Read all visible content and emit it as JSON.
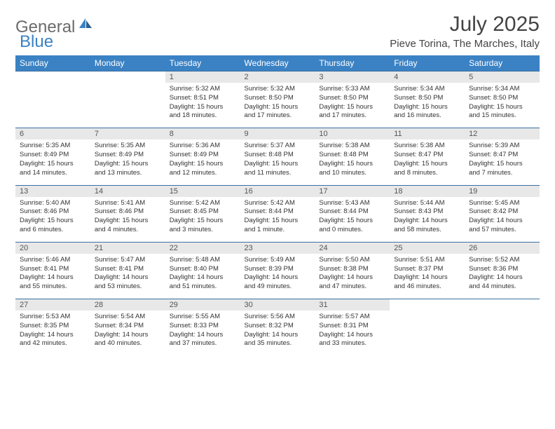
{
  "logo": {
    "general": "General",
    "blue": "Blue"
  },
  "title": "July 2025",
  "location": "Pieve Torina, The Marches, Italy",
  "colors": {
    "header_bg": "#3b82c4",
    "header_text": "#ffffff",
    "daynum_bg": "#e8e8e8",
    "border": "#3b6fa0",
    "body_text": "#333333",
    "logo_gray": "#6b6b6b",
    "logo_blue": "#3b82c4"
  },
  "day_headers": [
    "Sunday",
    "Monday",
    "Tuesday",
    "Wednesday",
    "Thursday",
    "Friday",
    "Saturday"
  ],
  "weeks": [
    [
      {
        "n": "",
        "sr": "",
        "ss": "",
        "dl": ""
      },
      {
        "n": "",
        "sr": "",
        "ss": "",
        "dl": ""
      },
      {
        "n": "1",
        "sr": "Sunrise: 5:32 AM",
        "ss": "Sunset: 8:51 PM",
        "dl": "Daylight: 15 hours and 18 minutes."
      },
      {
        "n": "2",
        "sr": "Sunrise: 5:32 AM",
        "ss": "Sunset: 8:50 PM",
        "dl": "Daylight: 15 hours and 17 minutes."
      },
      {
        "n": "3",
        "sr": "Sunrise: 5:33 AM",
        "ss": "Sunset: 8:50 PM",
        "dl": "Daylight: 15 hours and 17 minutes."
      },
      {
        "n": "4",
        "sr": "Sunrise: 5:34 AM",
        "ss": "Sunset: 8:50 PM",
        "dl": "Daylight: 15 hours and 16 minutes."
      },
      {
        "n": "5",
        "sr": "Sunrise: 5:34 AM",
        "ss": "Sunset: 8:50 PM",
        "dl": "Daylight: 15 hours and 15 minutes."
      }
    ],
    [
      {
        "n": "6",
        "sr": "Sunrise: 5:35 AM",
        "ss": "Sunset: 8:49 PM",
        "dl": "Daylight: 15 hours and 14 minutes."
      },
      {
        "n": "7",
        "sr": "Sunrise: 5:35 AM",
        "ss": "Sunset: 8:49 PM",
        "dl": "Daylight: 15 hours and 13 minutes."
      },
      {
        "n": "8",
        "sr": "Sunrise: 5:36 AM",
        "ss": "Sunset: 8:49 PM",
        "dl": "Daylight: 15 hours and 12 minutes."
      },
      {
        "n": "9",
        "sr": "Sunrise: 5:37 AM",
        "ss": "Sunset: 8:48 PM",
        "dl": "Daylight: 15 hours and 11 minutes."
      },
      {
        "n": "10",
        "sr": "Sunrise: 5:38 AM",
        "ss": "Sunset: 8:48 PM",
        "dl": "Daylight: 15 hours and 10 minutes."
      },
      {
        "n": "11",
        "sr": "Sunrise: 5:38 AM",
        "ss": "Sunset: 8:47 PM",
        "dl": "Daylight: 15 hours and 8 minutes."
      },
      {
        "n": "12",
        "sr": "Sunrise: 5:39 AM",
        "ss": "Sunset: 8:47 PM",
        "dl": "Daylight: 15 hours and 7 minutes."
      }
    ],
    [
      {
        "n": "13",
        "sr": "Sunrise: 5:40 AM",
        "ss": "Sunset: 8:46 PM",
        "dl": "Daylight: 15 hours and 6 minutes."
      },
      {
        "n": "14",
        "sr": "Sunrise: 5:41 AM",
        "ss": "Sunset: 8:46 PM",
        "dl": "Daylight: 15 hours and 4 minutes."
      },
      {
        "n": "15",
        "sr": "Sunrise: 5:42 AM",
        "ss": "Sunset: 8:45 PM",
        "dl": "Daylight: 15 hours and 3 minutes."
      },
      {
        "n": "16",
        "sr": "Sunrise: 5:42 AM",
        "ss": "Sunset: 8:44 PM",
        "dl": "Daylight: 15 hours and 1 minute."
      },
      {
        "n": "17",
        "sr": "Sunrise: 5:43 AM",
        "ss": "Sunset: 8:44 PM",
        "dl": "Daylight: 15 hours and 0 minutes."
      },
      {
        "n": "18",
        "sr": "Sunrise: 5:44 AM",
        "ss": "Sunset: 8:43 PM",
        "dl": "Daylight: 14 hours and 58 minutes."
      },
      {
        "n": "19",
        "sr": "Sunrise: 5:45 AM",
        "ss": "Sunset: 8:42 PM",
        "dl": "Daylight: 14 hours and 57 minutes."
      }
    ],
    [
      {
        "n": "20",
        "sr": "Sunrise: 5:46 AM",
        "ss": "Sunset: 8:41 PM",
        "dl": "Daylight: 14 hours and 55 minutes."
      },
      {
        "n": "21",
        "sr": "Sunrise: 5:47 AM",
        "ss": "Sunset: 8:41 PM",
        "dl": "Daylight: 14 hours and 53 minutes."
      },
      {
        "n": "22",
        "sr": "Sunrise: 5:48 AM",
        "ss": "Sunset: 8:40 PM",
        "dl": "Daylight: 14 hours and 51 minutes."
      },
      {
        "n": "23",
        "sr": "Sunrise: 5:49 AM",
        "ss": "Sunset: 8:39 PM",
        "dl": "Daylight: 14 hours and 49 minutes."
      },
      {
        "n": "24",
        "sr": "Sunrise: 5:50 AM",
        "ss": "Sunset: 8:38 PM",
        "dl": "Daylight: 14 hours and 47 minutes."
      },
      {
        "n": "25",
        "sr": "Sunrise: 5:51 AM",
        "ss": "Sunset: 8:37 PM",
        "dl": "Daylight: 14 hours and 46 minutes."
      },
      {
        "n": "26",
        "sr": "Sunrise: 5:52 AM",
        "ss": "Sunset: 8:36 PM",
        "dl": "Daylight: 14 hours and 44 minutes."
      }
    ],
    [
      {
        "n": "27",
        "sr": "Sunrise: 5:53 AM",
        "ss": "Sunset: 8:35 PM",
        "dl": "Daylight: 14 hours and 42 minutes."
      },
      {
        "n": "28",
        "sr": "Sunrise: 5:54 AM",
        "ss": "Sunset: 8:34 PM",
        "dl": "Daylight: 14 hours and 40 minutes."
      },
      {
        "n": "29",
        "sr": "Sunrise: 5:55 AM",
        "ss": "Sunset: 8:33 PM",
        "dl": "Daylight: 14 hours and 37 minutes."
      },
      {
        "n": "30",
        "sr": "Sunrise: 5:56 AM",
        "ss": "Sunset: 8:32 PM",
        "dl": "Daylight: 14 hours and 35 minutes."
      },
      {
        "n": "31",
        "sr": "Sunrise: 5:57 AM",
        "ss": "Sunset: 8:31 PM",
        "dl": "Daylight: 14 hours and 33 minutes."
      },
      {
        "n": "",
        "sr": "",
        "ss": "",
        "dl": ""
      },
      {
        "n": "",
        "sr": "",
        "ss": "",
        "dl": ""
      }
    ]
  ]
}
